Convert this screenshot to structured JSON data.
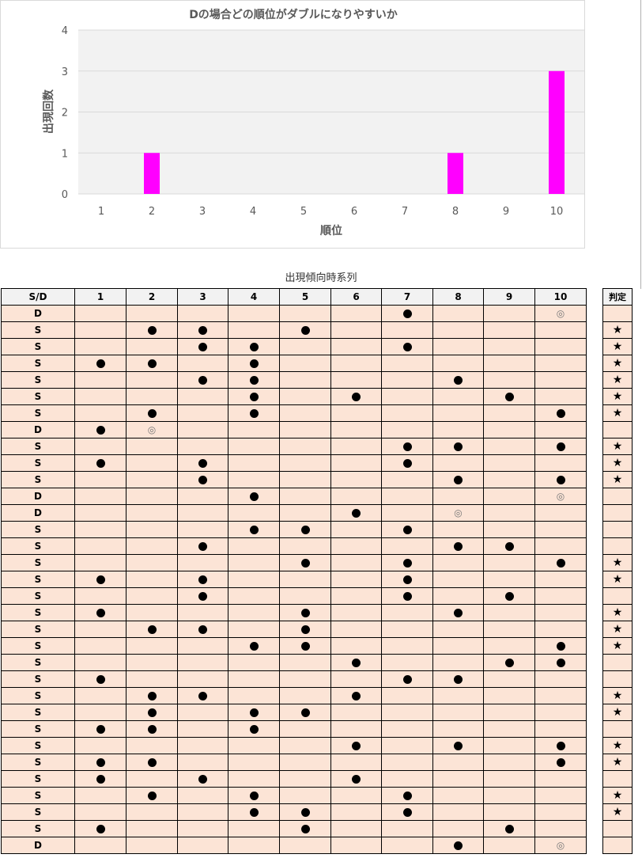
{
  "chart_data": {
    "type": "bar",
    "title": "Dの場合どの順位がダブルになりやすいか",
    "xlabel": "順位",
    "ylabel": "出現回数",
    "categories": [
      "1",
      "2",
      "3",
      "4",
      "5",
      "6",
      "7",
      "8",
      "9",
      "10"
    ],
    "values": [
      0,
      1,
      0,
      0,
      0,
      0,
      0,
      1,
      0,
      3
    ],
    "ylim": [
      0,
      4
    ],
    "yticks": [
      "0",
      "1",
      "2",
      "3",
      "4"
    ],
    "bar_color": "#ff00ff",
    "grid": true,
    "plot_background": "#f2f2f2"
  },
  "table": {
    "title": "出現傾向時系列",
    "header_sd": "S/D",
    "header_judge": "判定",
    "columns": [
      "1",
      "2",
      "3",
      "4",
      "5",
      "6",
      "7",
      "8",
      "9",
      "10"
    ],
    "marks": {
      "dot": "●",
      "double": "◎",
      "star": "★"
    },
    "rows": [
      {
        "sd": "D",
        "cells": [
          "",
          "",
          "",
          "",
          "",
          "",
          "dot",
          "",
          "",
          "double"
        ],
        "judge": ""
      },
      {
        "sd": "S",
        "cells": [
          "",
          "dot",
          "dot",
          "",
          "dot",
          "",
          "",
          "",
          "",
          ""
        ],
        "judge": "star"
      },
      {
        "sd": "S",
        "cells": [
          "",
          "",
          "dot",
          "dot",
          "",
          "",
          "dot",
          "",
          "",
          ""
        ],
        "judge": "star"
      },
      {
        "sd": "S",
        "cells": [
          "dot",
          "dot",
          "",
          "dot",
          "",
          "",
          "",
          "",
          "",
          ""
        ],
        "judge": "star"
      },
      {
        "sd": "S",
        "cells": [
          "",
          "",
          "dot",
          "dot",
          "",
          "",
          "",
          "dot",
          "",
          ""
        ],
        "judge": "star"
      },
      {
        "sd": "S",
        "cells": [
          "",
          "",
          "",
          "dot",
          "",
          "dot",
          "",
          "",
          "dot",
          ""
        ],
        "judge": "star"
      },
      {
        "sd": "S",
        "cells": [
          "",
          "dot",
          "",
          "dot",
          "",
          "",
          "",
          "",
          "",
          "dot"
        ],
        "judge": "star"
      },
      {
        "sd": "D",
        "cells": [
          "dot",
          "double",
          "",
          "",
          "",
          "",
          "",
          "",
          "",
          ""
        ],
        "judge": ""
      },
      {
        "sd": "S",
        "cells": [
          "",
          "",
          "",
          "",
          "",
          "",
          "dot",
          "dot",
          "",
          "dot"
        ],
        "judge": "star"
      },
      {
        "sd": "S",
        "cells": [
          "dot",
          "",
          "dot",
          "",
          "",
          "",
          "dot",
          "",
          "",
          ""
        ],
        "judge": "star"
      },
      {
        "sd": "S",
        "cells": [
          "",
          "",
          "dot",
          "",
          "",
          "",
          "",
          "dot",
          "",
          "dot"
        ],
        "judge": "star"
      },
      {
        "sd": "D",
        "cells": [
          "",
          "",
          "",
          "dot",
          "",
          "",
          "",
          "",
          "",
          "double"
        ],
        "judge": ""
      },
      {
        "sd": "D",
        "cells": [
          "",
          "",
          "",
          "",
          "",
          "dot",
          "",
          "double",
          "",
          ""
        ],
        "judge": ""
      },
      {
        "sd": "S",
        "cells": [
          "",
          "",
          "",
          "dot",
          "dot",
          "",
          "dot",
          "",
          "",
          ""
        ],
        "judge": ""
      },
      {
        "sd": "S",
        "cells": [
          "",
          "",
          "dot",
          "",
          "",
          "",
          "",
          "dot",
          "dot",
          ""
        ],
        "judge": ""
      },
      {
        "sd": "S",
        "cells": [
          "",
          "",
          "",
          "",
          "dot",
          "",
          "dot",
          "",
          "",
          "dot"
        ],
        "judge": "star"
      },
      {
        "sd": "S",
        "cells": [
          "dot",
          "",
          "dot",
          "",
          "",
          "",
          "dot",
          "",
          "",
          ""
        ],
        "judge": "star"
      },
      {
        "sd": "S",
        "cells": [
          "",
          "",
          "dot",
          "",
          "",
          "",
          "dot",
          "",
          "dot",
          ""
        ],
        "judge": ""
      },
      {
        "sd": "S",
        "cells": [
          "dot",
          "",
          "",
          "",
          "dot",
          "",
          "",
          "dot",
          "",
          ""
        ],
        "judge": "star"
      },
      {
        "sd": "S",
        "cells": [
          "",
          "dot",
          "dot",
          "",
          "dot",
          "",
          "",
          "",
          "",
          ""
        ],
        "judge": "star"
      },
      {
        "sd": "S",
        "cells": [
          "",
          "",
          "",
          "dot",
          "dot",
          "",
          "",
          "",
          "",
          "dot"
        ],
        "judge": "star"
      },
      {
        "sd": "S",
        "cells": [
          "",
          "",
          "",
          "",
          "",
          "dot",
          "",
          "",
          "dot",
          "dot"
        ],
        "judge": ""
      },
      {
        "sd": "S",
        "cells": [
          "dot",
          "",
          "",
          "",
          "",
          "",
          "dot",
          "dot",
          "",
          ""
        ],
        "judge": ""
      },
      {
        "sd": "S",
        "cells": [
          "",
          "dot",
          "dot",
          "",
          "",
          "dot",
          "",
          "",
          "",
          ""
        ],
        "judge": "star"
      },
      {
        "sd": "S",
        "cells": [
          "",
          "dot",
          "",
          "dot",
          "dot",
          "",
          "",
          "",
          "",
          ""
        ],
        "judge": "star"
      },
      {
        "sd": "S",
        "cells": [
          "dot",
          "dot",
          "",
          "dot",
          "",
          "",
          "",
          "",
          "",
          ""
        ],
        "judge": ""
      },
      {
        "sd": "S",
        "cells": [
          "",
          "",
          "",
          "",
          "",
          "dot",
          "",
          "dot",
          "",
          "dot"
        ],
        "judge": "star"
      },
      {
        "sd": "S",
        "cells": [
          "dot",
          "dot",
          "",
          "",
          "",
          "",
          "",
          "",
          "",
          "dot"
        ],
        "judge": "star"
      },
      {
        "sd": "S",
        "cells": [
          "dot",
          "",
          "dot",
          "",
          "",
          "dot",
          "",
          "",
          "",
          ""
        ],
        "judge": ""
      },
      {
        "sd": "S",
        "cells": [
          "",
          "dot",
          "",
          "dot",
          "",
          "",
          "dot",
          "",
          "",
          ""
        ],
        "judge": "star"
      },
      {
        "sd": "S",
        "cells": [
          "",
          "",
          "",
          "dot",
          "dot",
          "",
          "dot",
          "",
          "",
          ""
        ],
        "judge": "star"
      },
      {
        "sd": "S",
        "cells": [
          "dot",
          "",
          "",
          "",
          "dot",
          "",
          "",
          "",
          "dot",
          ""
        ],
        "judge": ""
      },
      {
        "sd": "D",
        "cells": [
          "",
          "",
          "",
          "",
          "",
          "",
          "",
          "dot",
          "",
          "double"
        ],
        "judge": ""
      }
    ]
  }
}
